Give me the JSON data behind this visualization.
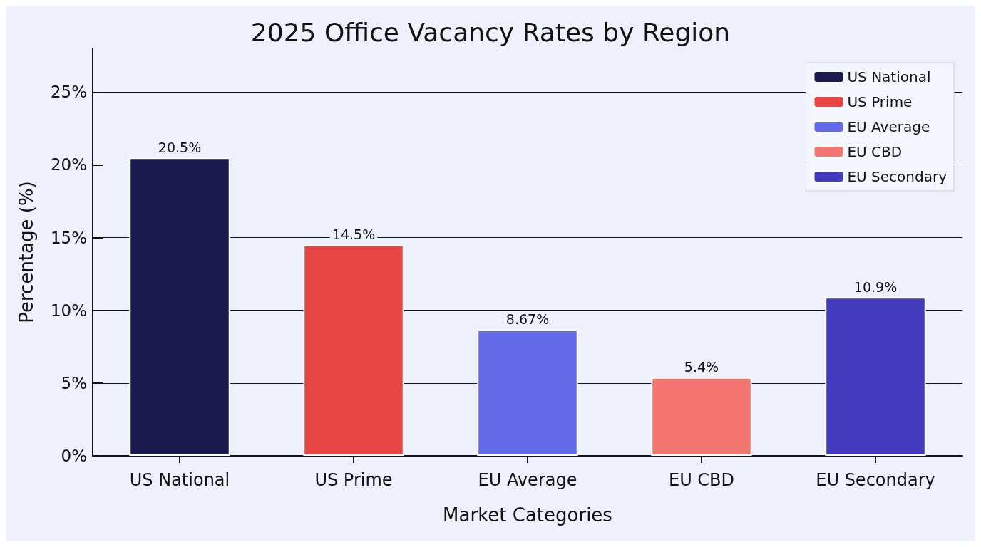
{
  "chart_data": {
    "type": "bar",
    "title": "2025 Office Vacancy Rates by Region",
    "xlabel": "Market Categories",
    "ylabel": "Percentage (%)",
    "categories": [
      "US National",
      "US Prime",
      "EU Average",
      "EU CBD",
      "EU Secondary"
    ],
    "series": [
      {
        "name": "US National",
        "color": "#1a1a4e",
        "values": [
          20.5,
          null,
          null,
          null,
          null
        ],
        "value_labels": [
          "20.5%",
          null,
          null,
          null,
          null
        ]
      },
      {
        "name": "US Prime",
        "color": "#e84545",
        "values": [
          null,
          14.5,
          null,
          null,
          null
        ],
        "value_labels": [
          null,
          "14.5%",
          null,
          null,
          null
        ]
      },
      {
        "name": "EU Average",
        "color": "#626ae8",
        "values": [
          null,
          null,
          8.67,
          null,
          null
        ],
        "value_labels": [
          null,
          null,
          "8.67%",
          null,
          null
        ]
      },
      {
        "name": "EU CBD",
        "color": "#f47670",
        "values": [
          null,
          null,
          null,
          5.4,
          null
        ],
        "value_labels": [
          null,
          null,
          null,
          "5.4%",
          null
        ]
      },
      {
        "name": "EU Secondary",
        "color": "#4239bd",
        "values": [
          null,
          null,
          null,
          null,
          10.9
        ],
        "value_labels": [
          null,
          null,
          null,
          null,
          "10.9%"
        ]
      }
    ],
    "ylim": [
      0,
      28
    ],
    "yticks": [
      {
        "value": 0,
        "label": "0%"
      },
      {
        "value": 5,
        "label": "5%"
      },
      {
        "value": 10,
        "label": "10%"
      },
      {
        "value": 15,
        "label": "15%"
      },
      {
        "value": 20,
        "label": "20%"
      },
      {
        "value": 25,
        "label": "25%"
      }
    ],
    "grid": "y",
    "legend": "top right"
  }
}
